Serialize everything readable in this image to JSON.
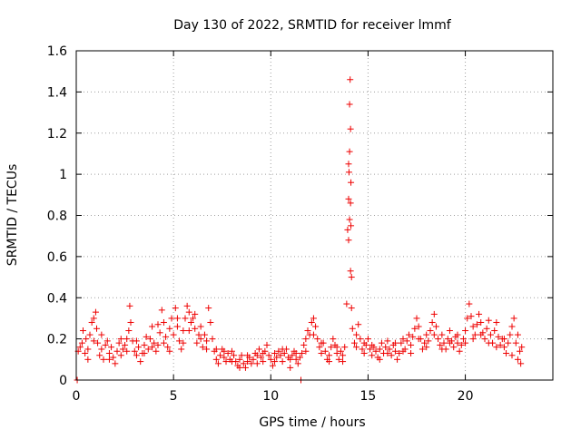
{
  "chart_data": {
    "type": "scatter",
    "title": "Day 130 of 2022, SRMTID for receiver lmmf",
    "xlabel": "GPS time / hours",
    "ylabel": "SRMTID / TECUs",
    "xlim": [
      0,
      24.5
    ],
    "ylim": [
      0,
      1.6
    ],
    "xticks": [
      0,
      5,
      10,
      15,
      20
    ],
    "xtick_labels": [
      "0",
      "5",
      "10",
      "15",
      "20"
    ],
    "yticks": [
      0,
      0.2,
      0.4,
      0.6,
      0.8,
      1,
      1.2,
      1.4,
      1.6
    ],
    "ytick_labels": [
      "0",
      "0.2",
      "0.4",
      "0.6",
      "0.8",
      "1",
      "1.2",
      "1.4",
      "1.6"
    ],
    "grid": true,
    "marker": "+",
    "color": "#ee0000",
    "series": [
      {
        "name": "SRMTID",
        "points": [
          [
            0.05,
            0.0
          ],
          [
            0.1,
            0.14
          ],
          [
            0.2,
            0.16
          ],
          [
            0.3,
            0.18
          ],
          [
            0.35,
            0.24
          ],
          [
            0.45,
            0.13
          ],
          [
            0.5,
            0.2
          ],
          [
            0.6,
            0.15
          ],
          [
            0.7,
            0.22
          ],
          [
            0.8,
            0.28
          ],
          [
            0.9,
            0.3
          ],
          [
            1.0,
            0.33
          ],
          [
            1.05,
            0.25
          ],
          [
            1.1,
            0.18
          ],
          [
            1.2,
            0.12
          ],
          [
            1.3,
            0.15
          ],
          [
            1.4,
            0.1
          ],
          [
            1.5,
            0.17
          ],
          [
            1.6,
            0.19
          ],
          [
            1.7,
            0.13
          ],
          [
            1.8,
            0.16
          ],
          [
            1.9,
            0.11
          ],
          [
            2.0,
            0.08
          ],
          [
            2.1,
            0.14
          ],
          [
            2.2,
            0.18
          ],
          [
            2.3,
            0.12
          ],
          [
            2.4,
            0.15
          ],
          [
            2.5,
            0.17
          ],
          [
            2.6,
            0.2
          ],
          [
            2.7,
            0.24
          ],
          [
            2.75,
            0.36
          ],
          [
            2.8,
            0.28
          ],
          [
            2.9,
            0.19
          ],
          [
            3.0,
            0.14
          ],
          [
            3.1,
            0.12
          ],
          [
            3.2,
            0.16
          ],
          [
            3.3,
            0.09
          ],
          [
            3.4,
            0.13
          ],
          [
            3.5,
            0.17
          ],
          [
            3.6,
            0.21
          ],
          [
            3.7,
            0.15
          ],
          [
            3.8,
            0.2
          ],
          [
            3.9,
            0.26
          ],
          [
            4.0,
            0.18
          ],
          [
            4.1,
            0.14
          ],
          [
            4.2,
            0.17
          ],
          [
            4.3,
            0.23
          ],
          [
            4.4,
            0.34
          ],
          [
            4.5,
            0.28
          ],
          [
            4.6,
            0.21
          ],
          [
            4.7,
            0.16
          ],
          [
            4.8,
            0.25
          ],
          [
            4.9,
            0.3
          ],
          [
            5.0,
            0.22
          ],
          [
            5.1,
            0.35
          ],
          [
            5.2,
            0.26
          ],
          [
            5.3,
            0.19
          ],
          [
            5.4,
            0.15
          ],
          [
            5.5,
            0.24
          ],
          [
            5.6,
            0.3
          ],
          [
            5.7,
            0.36
          ],
          [
            5.8,
            0.33
          ],
          [
            5.9,
            0.28
          ],
          [
            6.0,
            0.3
          ],
          [
            6.1,
            0.25
          ],
          [
            6.2,
            0.18
          ],
          [
            6.3,
            0.22
          ],
          [
            6.4,
            0.2
          ],
          [
            6.5,
            0.16
          ],
          [
            6.6,
            0.22
          ],
          [
            6.7,
            0.19
          ],
          [
            6.8,
            0.35
          ],
          [
            6.9,
            0.28
          ],
          [
            7.0,
            0.2
          ],
          [
            7.1,
            0.14
          ],
          [
            7.2,
            0.1
          ],
          [
            7.3,
            0.08
          ],
          [
            7.4,
            0.12
          ],
          [
            7.5,
            0.15
          ],
          [
            7.6,
            0.11
          ],
          [
            7.7,
            0.09
          ],
          [
            7.8,
            0.13
          ],
          [
            7.9,
            0.1
          ],
          [
            8.0,
            0.14
          ],
          [
            8.1,
            0.12
          ],
          [
            8.2,
            0.09
          ],
          [
            8.3,
            0.07
          ],
          [
            8.4,
            0.1
          ],
          [
            8.5,
            0.12
          ],
          [
            8.6,
            0.08
          ],
          [
            8.7,
            0.06
          ],
          [
            8.8,
            0.09
          ],
          [
            8.9,
            0.11
          ],
          [
            9.0,
            0.08
          ],
          [
            9.1,
            0.1
          ],
          [
            9.2,
            0.13
          ],
          [
            9.3,
            0.12
          ],
          [
            9.4,
            0.15
          ],
          [
            9.5,
            0.11
          ],
          [
            9.6,
            0.09
          ],
          [
            9.7,
            0.14
          ],
          [
            9.8,
            0.17
          ],
          [
            9.9,
            0.12
          ],
          [
            10.0,
            0.1
          ],
          [
            10.1,
            0.07
          ],
          [
            10.2,
            0.09
          ],
          [
            10.3,
            0.11
          ],
          [
            10.4,
            0.14
          ],
          [
            10.5,
            0.12
          ],
          [
            10.6,
            0.09
          ],
          [
            10.7,
            0.13
          ],
          [
            10.8,
            0.15
          ],
          [
            10.9,
            0.11
          ],
          [
            11.0,
            0.1
          ],
          [
            11.1,
            0.12
          ],
          [
            11.2,
            0.14
          ],
          [
            11.3,
            0.1
          ],
          [
            11.4,
            0.08
          ],
          [
            11.5,
            0.11
          ],
          [
            11.55,
            0.0
          ],
          [
            11.6,
            0.13
          ],
          [
            11.7,
            0.17
          ],
          [
            11.8,
            0.2
          ],
          [
            11.9,
            0.24
          ],
          [
            12.0,
            0.22
          ],
          [
            12.1,
            0.28
          ],
          [
            12.2,
            0.3
          ],
          [
            12.3,
            0.26
          ],
          [
            12.4,
            0.2
          ],
          [
            12.5,
            0.16
          ],
          [
            12.6,
            0.13
          ],
          [
            12.7,
            0.18
          ],
          [
            12.8,
            0.14
          ],
          [
            12.9,
            0.1
          ],
          [
            13.0,
            0.12
          ],
          [
            13.1,
            0.16
          ],
          [
            13.2,
            0.2
          ],
          [
            13.3,
            0.17
          ],
          [
            13.4,
            0.13
          ],
          [
            13.5,
            0.1
          ],
          [
            13.6,
            0.14
          ],
          [
            13.7,
            0.12
          ],
          [
            13.8,
            0.16
          ],
          [
            13.9,
            0.37
          ],
          [
            13.95,
            0.73
          ],
          [
            14.0,
            0.88
          ],
          [
            14.02,
            1.01
          ],
          [
            14.05,
            1.11
          ],
          [
            14.08,
            1.46
          ],
          [
            14.1,
            0.53
          ],
          [
            14.12,
            0.96
          ],
          [
            14.15,
            0.35
          ],
          [
            14.05,
            1.34
          ],
          [
            14.1,
            1.22
          ],
          [
            14.0,
            0.68
          ],
          [
            14.0,
            1.05
          ],
          [
            14.05,
            0.78
          ],
          [
            14.1,
            0.86
          ],
          [
            14.12,
            0.75
          ],
          [
            14.15,
            0.5
          ],
          [
            14.2,
            0.25
          ],
          [
            14.3,
            0.18
          ],
          [
            14.4,
            0.22
          ],
          [
            14.5,
            0.27
          ],
          [
            14.6,
            0.2
          ],
          [
            14.7,
            0.15
          ],
          [
            14.8,
            0.13
          ],
          [
            14.9,
            0.17
          ],
          [
            15.0,
            0.2
          ],
          [
            15.1,
            0.15
          ],
          [
            15.2,
            0.12
          ],
          [
            15.3,
            0.16
          ],
          [
            15.4,
            0.14
          ],
          [
            15.5,
            0.11
          ],
          [
            15.6,
            0.15
          ],
          [
            15.7,
            0.18
          ],
          [
            15.8,
            0.13
          ],
          [
            15.9,
            0.16
          ],
          [
            16.0,
            0.19
          ],
          [
            16.1,
            0.15
          ],
          [
            16.2,
            0.12
          ],
          [
            16.3,
            0.17
          ],
          [
            16.4,
            0.14
          ],
          [
            16.5,
            0.1
          ],
          [
            16.6,
            0.13
          ],
          [
            16.7,
            0.18
          ],
          [
            16.8,
            0.2
          ],
          [
            16.9,
            0.15
          ],
          [
            17.0,
            0.19
          ],
          [
            17.1,
            0.22
          ],
          [
            17.2,
            0.17
          ],
          [
            17.3,
            0.21
          ],
          [
            17.4,
            0.25
          ],
          [
            17.5,
            0.3
          ],
          [
            17.6,
            0.26
          ],
          [
            17.7,
            0.2
          ],
          [
            17.8,
            0.15
          ],
          [
            17.9,
            0.18
          ],
          [
            18.0,
            0.22
          ],
          [
            18.1,
            0.19
          ],
          [
            18.2,
            0.24
          ],
          [
            18.3,
            0.28
          ],
          [
            18.4,
            0.32
          ],
          [
            18.5,
            0.26
          ],
          [
            18.6,
            0.2
          ],
          [
            18.7,
            0.17
          ],
          [
            18.8,
            0.22
          ],
          [
            18.9,
            0.18
          ],
          [
            19.0,
            0.15
          ],
          [
            19.1,
            0.2
          ],
          [
            19.2,
            0.24
          ],
          [
            19.3,
            0.19
          ],
          [
            19.4,
            0.16
          ],
          [
            19.5,
            0.21
          ],
          [
            19.6,
            0.18
          ],
          [
            19.7,
            0.14
          ],
          [
            19.8,
            0.17
          ],
          [
            19.9,
            0.2
          ],
          [
            20.0,
            0.24
          ],
          [
            20.1,
            0.3
          ],
          [
            20.2,
            0.37
          ],
          [
            20.3,
            0.31
          ],
          [
            20.4,
            0.26
          ],
          [
            20.5,
            0.22
          ],
          [
            20.6,
            0.27
          ],
          [
            20.7,
            0.32
          ],
          [
            20.8,
            0.28
          ],
          [
            20.9,
            0.23
          ],
          [
            21.0,
            0.2
          ],
          [
            21.1,
            0.25
          ],
          [
            21.2,
            0.29
          ],
          [
            21.3,
            0.22
          ],
          [
            21.4,
            0.18
          ],
          [
            21.5,
            0.24
          ],
          [
            21.6,
            0.28
          ],
          [
            21.7,
            0.21
          ],
          [
            21.8,
            0.17
          ],
          [
            21.9,
            0.2
          ],
          [
            22.0,
            0.16
          ],
          [
            22.1,
            0.13
          ],
          [
            22.2,
            0.18
          ],
          [
            22.3,
            0.22
          ],
          [
            22.4,
            0.26
          ],
          [
            22.5,
            0.3
          ],
          [
            22.6,
            0.18
          ],
          [
            22.7,
            0.1
          ],
          [
            22.8,
            0.14
          ],
          [
            22.9,
            0.16
          ],
          [
            0.6,
            0.1
          ],
          [
            0.9,
            0.19
          ],
          [
            1.3,
            0.22
          ],
          [
            1.7,
            0.1
          ],
          [
            2.3,
            0.2
          ],
          [
            2.6,
            0.14
          ],
          [
            3.1,
            0.19
          ],
          [
            3.5,
            0.13
          ],
          [
            3.9,
            0.16
          ],
          [
            4.2,
            0.27
          ],
          [
            4.5,
            0.18
          ],
          [
            4.8,
            0.14
          ],
          [
            5.2,
            0.3
          ],
          [
            5.5,
            0.18
          ],
          [
            5.8,
            0.24
          ],
          [
            6.1,
            0.32
          ],
          [
            6.4,
            0.26
          ],
          [
            6.7,
            0.15
          ],
          [
            7.2,
            0.15
          ],
          [
            7.6,
            0.14
          ],
          [
            8.0,
            0.09
          ],
          [
            8.4,
            0.06
          ],
          [
            8.8,
            0.12
          ],
          [
            9.3,
            0.08
          ],
          [
            9.6,
            0.13
          ],
          [
            10.2,
            0.13
          ],
          [
            10.6,
            0.15
          ],
          [
            11.0,
            0.06
          ],
          [
            11.3,
            0.13
          ],
          [
            11.8,
            0.14
          ],
          [
            12.2,
            0.22
          ],
          [
            12.6,
            0.18
          ],
          [
            13.0,
            0.09
          ],
          [
            13.4,
            0.16
          ],
          [
            13.7,
            0.09
          ],
          [
            14.4,
            0.16
          ],
          [
            14.8,
            0.18
          ],
          [
            15.2,
            0.17
          ],
          [
            15.6,
            0.1
          ],
          [
            16.0,
            0.13
          ],
          [
            16.4,
            0.18
          ],
          [
            16.8,
            0.14
          ],
          [
            17.2,
            0.13
          ],
          [
            17.6,
            0.2
          ],
          [
            18.0,
            0.16
          ],
          [
            18.4,
            0.22
          ],
          [
            18.8,
            0.15
          ],
          [
            19.2,
            0.18
          ],
          [
            19.6,
            0.22
          ],
          [
            20.0,
            0.18
          ],
          [
            20.4,
            0.2
          ],
          [
            20.8,
            0.22
          ],
          [
            21.2,
            0.18
          ],
          [
            21.6,
            0.16
          ],
          [
            22.0,
            0.2
          ],
          [
            22.4,
            0.12
          ],
          [
            22.7,
            0.22
          ],
          [
            22.85,
            0.08
          ]
        ]
      }
    ]
  }
}
